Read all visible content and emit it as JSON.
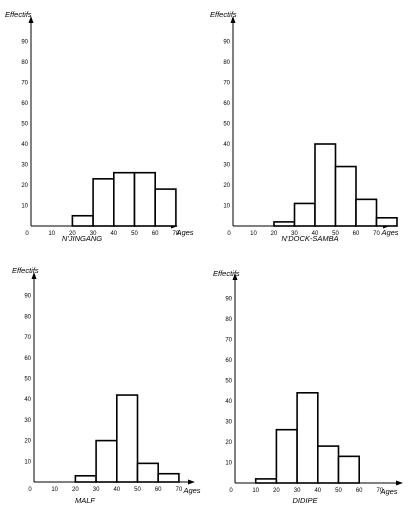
{
  "chart_data": [
    {
      "type": "bar",
      "title": "N'JINGANG",
      "ylabel": "Effectifs",
      "xlabel": "Ages",
      "x_ticks": [
        "0",
        "10",
        "20",
        "30",
        "40",
        "50",
        "60",
        "70"
      ],
      "y_ticks": [
        "10",
        "20",
        "30",
        "40",
        "50",
        "60",
        "70",
        "80",
        "90"
      ],
      "bins": [
        [
          20,
          30
        ],
        [
          30,
          40
        ],
        [
          40,
          50
        ],
        [
          50,
          60
        ],
        [
          60,
          70
        ]
      ],
      "values": [
        5,
        23,
        26,
        26,
        18
      ],
      "xlim": [
        0,
        75
      ],
      "ylim": [
        0,
        100
      ]
    },
    {
      "type": "bar",
      "title": "N'DOCK-SAMBA",
      "ylabel": "Effectifs",
      "xlabel": "Ages",
      "x_ticks": [
        "0",
        "10",
        "20",
        "30",
        "40",
        "50",
        "60",
        "70"
      ],
      "y_ticks": [
        "10",
        "20",
        "30",
        "40",
        "50",
        "60",
        "70",
        "80",
        "90"
      ],
      "bins": [
        [
          20,
          30
        ],
        [
          30,
          40
        ],
        [
          40,
          50
        ],
        [
          50,
          60
        ],
        [
          60,
          70
        ],
        [
          70,
          80
        ]
      ],
      "values": [
        2,
        11,
        40,
        29,
        13,
        4
      ],
      "xlim": [
        0,
        80
      ],
      "ylim": [
        0,
        100
      ]
    },
    {
      "type": "bar",
      "title": "MALF",
      "ylabel": "Effectifs",
      "xlabel": "Ages",
      "x_ticks": [
        "0",
        "10",
        "20",
        "30",
        "40",
        "50",
        "60",
        "70"
      ],
      "y_ticks": [
        "10",
        "20",
        "30",
        "40",
        "50",
        "60",
        "70",
        "80",
        "90"
      ],
      "bins": [
        [
          20,
          30
        ],
        [
          30,
          40
        ],
        [
          40,
          50
        ],
        [
          50,
          60
        ],
        [
          60,
          70
        ]
      ],
      "values": [
        3,
        20,
        42,
        9,
        4
      ],
      "xlim": [
        0,
        80
      ],
      "ylim": [
        0,
        100
      ]
    },
    {
      "type": "bar",
      "title": "DIDIPE",
      "ylabel": "Effectifs",
      "xlabel": "Ages",
      "x_ticks": [
        "0",
        "10",
        "20",
        "30",
        "40",
        "50",
        "60",
        "70"
      ],
      "y_ticks": [
        "10",
        "20",
        "30",
        "40",
        "50",
        "60",
        "70",
        "80",
        "90"
      ],
      "bins": [
        [
          10,
          20
        ],
        [
          20,
          30
        ],
        [
          30,
          40
        ],
        [
          40,
          50
        ],
        [
          50,
          60
        ]
      ],
      "values": [
        2,
        26,
        44,
        18,
        13
      ],
      "xlim": [
        0,
        80
      ],
      "ylim": [
        0,
        100
      ]
    }
  ]
}
